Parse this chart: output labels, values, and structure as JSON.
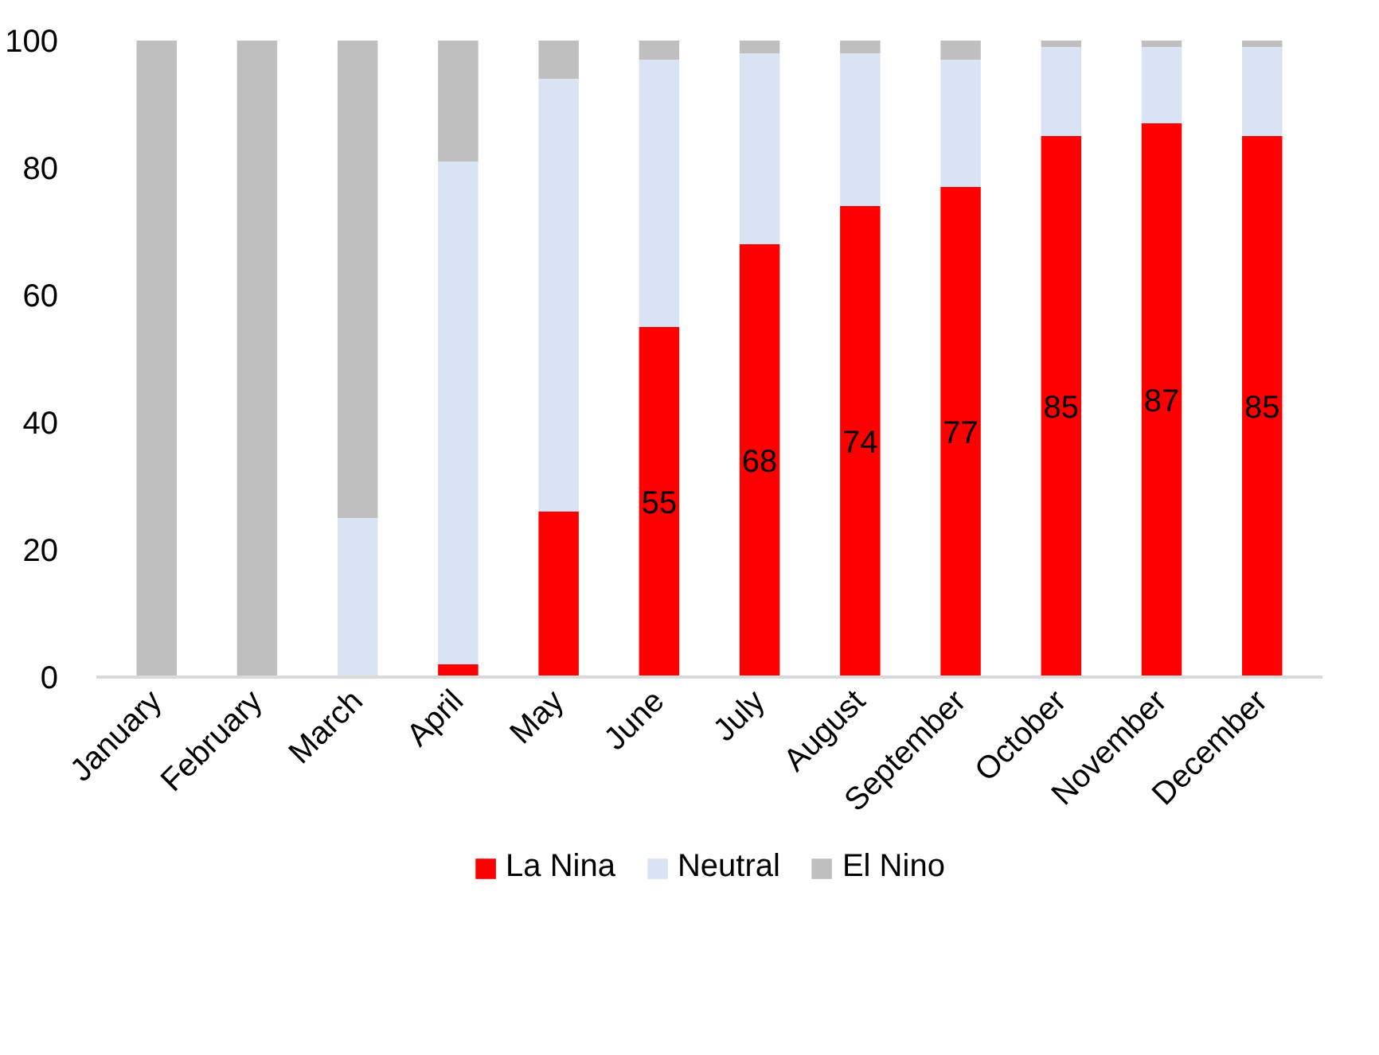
{
  "chart_data": {
    "type": "bar",
    "stacked": true,
    "legend": "bottom",
    "categories": [
      "January",
      "February",
      "March",
      "April",
      "May",
      "June",
      "July",
      "August",
      "September",
      "October",
      "November",
      "December"
    ],
    "series": [
      {
        "name": "La Nina",
        "color": "#ff0000",
        "values": [
          0,
          0,
          0,
          2,
          26,
          55,
          68,
          74,
          77,
          85,
          87,
          85
        ],
        "value_labels": [
          null,
          null,
          null,
          null,
          null,
          "55",
          "68",
          "74",
          "77",
          "85",
          "87",
          "85"
        ]
      },
      {
        "name": "Neutral",
        "color": "#dae3f3",
        "values": [
          0,
          0,
          25,
          79,
          68,
          42,
          30,
          24,
          20,
          14,
          12,
          14
        ]
      },
      {
        "name": "El Nino",
        "color": "#bfbfbf",
        "values": [
          100,
          100,
          75,
          19,
          6,
          3,
          2,
          2,
          3,
          1,
          1,
          1
        ]
      }
    ],
    "ylim": [
      0,
      100
    ],
    "yticks": [
      0,
      20,
      40,
      60,
      80,
      100
    ]
  }
}
